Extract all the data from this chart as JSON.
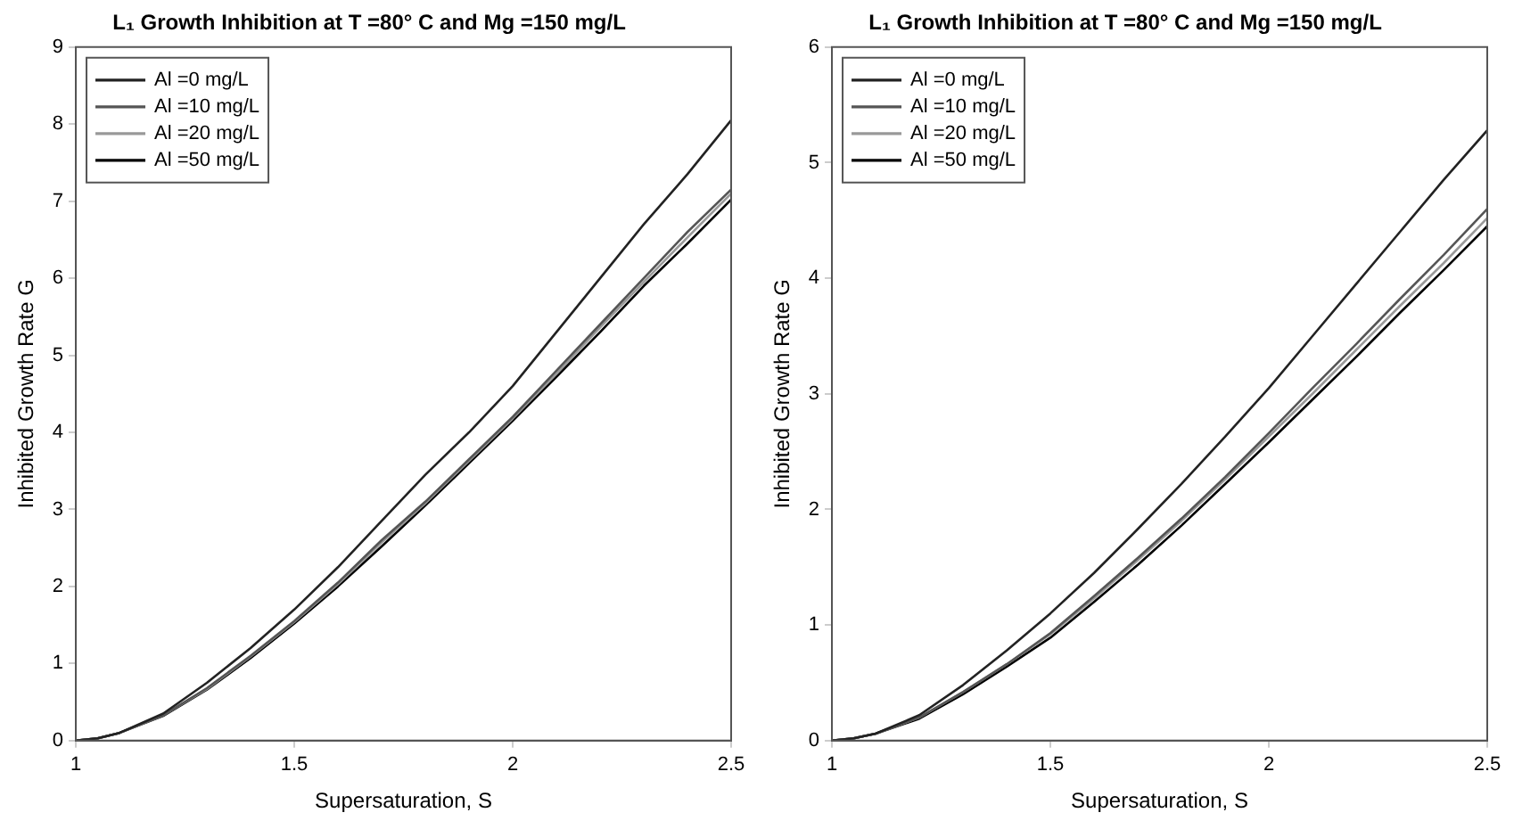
{
  "chart_data": [
    {
      "type": "line",
      "title": "L₁ Growth Inhibition at T =80° C and Mg =150 mg/L",
      "xlabel": "Supersaturation, S",
      "ylabel": "Inhibited Growth Rate G",
      "x": [
        1,
        1.05,
        1.1,
        1.2,
        1.3,
        1.4,
        1.5,
        1.6,
        1.7,
        1.8,
        1.9,
        2.0,
        2.1,
        2.2,
        2.3,
        2.4,
        2.5
      ],
      "series": [
        {
          "name": "Al =0 mg/L",
          "color": "#222222",
          "values": [
            0,
            0.03,
            0.1,
            0.35,
            0.75,
            1.2,
            1.7,
            2.25,
            2.85,
            3.45,
            4.0,
            4.6,
            5.3,
            6.0,
            6.7,
            7.35,
            8.05
          ]
        },
        {
          "name": "Al =10 mg/L",
          "color": "#555555",
          "values": [
            0,
            0.03,
            0.1,
            0.33,
            0.68,
            1.1,
            1.55,
            2.05,
            2.6,
            3.1,
            3.65,
            4.2,
            4.8,
            5.4,
            6.0,
            6.6,
            7.15
          ]
        },
        {
          "name": "Al =20 mg/L",
          "color": "#999999",
          "values": [
            0,
            0.03,
            0.1,
            0.33,
            0.67,
            1.09,
            1.54,
            2.03,
            2.57,
            3.08,
            3.63,
            4.18,
            4.76,
            5.36,
            5.95,
            6.53,
            7.1
          ]
        },
        {
          "name": "Al =50 mg/L",
          "color": "#000000",
          "values": [
            0,
            0.03,
            0.1,
            0.32,
            0.66,
            1.07,
            1.52,
            2.0,
            2.52,
            3.05,
            3.6,
            4.15,
            4.72,
            5.3,
            5.9,
            6.45,
            7.02
          ]
        }
      ],
      "xlim": [
        1,
        2.5
      ],
      "xticks": [
        1,
        1.5,
        2,
        2.5
      ],
      "ylim": [
        0,
        9
      ],
      "yticks": [
        0,
        1,
        2,
        3,
        4,
        5,
        6,
        7,
        8,
        9
      ],
      "grid": false,
      "legend": "top left",
      "marker": "none",
      "line_style": "solid"
    },
    {
      "type": "line",
      "title": "L₁ Growth Inhibition at T =80° C and Mg =150 mg/L",
      "xlabel": "Supersaturation, S",
      "ylabel": "Inhibited Growth Rate G",
      "x": [
        1,
        1.05,
        1.1,
        1.2,
        1.3,
        1.4,
        1.5,
        1.6,
        1.7,
        1.8,
        1.9,
        2.0,
        2.1,
        2.2,
        2.3,
        2.4,
        2.5
      ],
      "series": [
        {
          "name": "Al =0 mg/L",
          "color": "#222222",
          "values": [
            0,
            0.02,
            0.06,
            0.22,
            0.48,
            0.78,
            1.1,
            1.45,
            1.83,
            2.22,
            2.63,
            3.05,
            3.5,
            3.95,
            4.4,
            4.85,
            5.28
          ]
        },
        {
          "name": "Al =10 mg/L",
          "color": "#555555",
          "values": [
            0,
            0.02,
            0.06,
            0.2,
            0.42,
            0.66,
            0.93,
            1.25,
            1.58,
            1.92,
            2.28,
            2.66,
            3.05,
            3.43,
            3.82,
            4.2,
            4.6
          ]
        },
        {
          "name": "Al =20 mg/L",
          "color": "#999999",
          "values": [
            0,
            0.02,
            0.06,
            0.2,
            0.42,
            0.66,
            0.92,
            1.23,
            1.56,
            1.9,
            2.26,
            2.63,
            3.0,
            3.38,
            3.76,
            4.13,
            4.52
          ]
        },
        {
          "name": "Al =50 mg/L",
          "color": "#000000",
          "values": [
            0,
            0.02,
            0.06,
            0.19,
            0.4,
            0.64,
            0.89,
            1.2,
            1.52,
            1.86,
            2.22,
            2.58,
            2.95,
            3.32,
            3.7,
            4.07,
            4.45
          ]
        }
      ],
      "xlim": [
        1,
        2.5
      ],
      "xticks": [
        1,
        1.5,
        2,
        2.5
      ],
      "ylim": [
        0,
        6
      ],
      "yticks": [
        0,
        1,
        2,
        3,
        4,
        5,
        6
      ],
      "grid": false,
      "legend": "top left",
      "marker": "none",
      "line_style": "solid"
    }
  ]
}
